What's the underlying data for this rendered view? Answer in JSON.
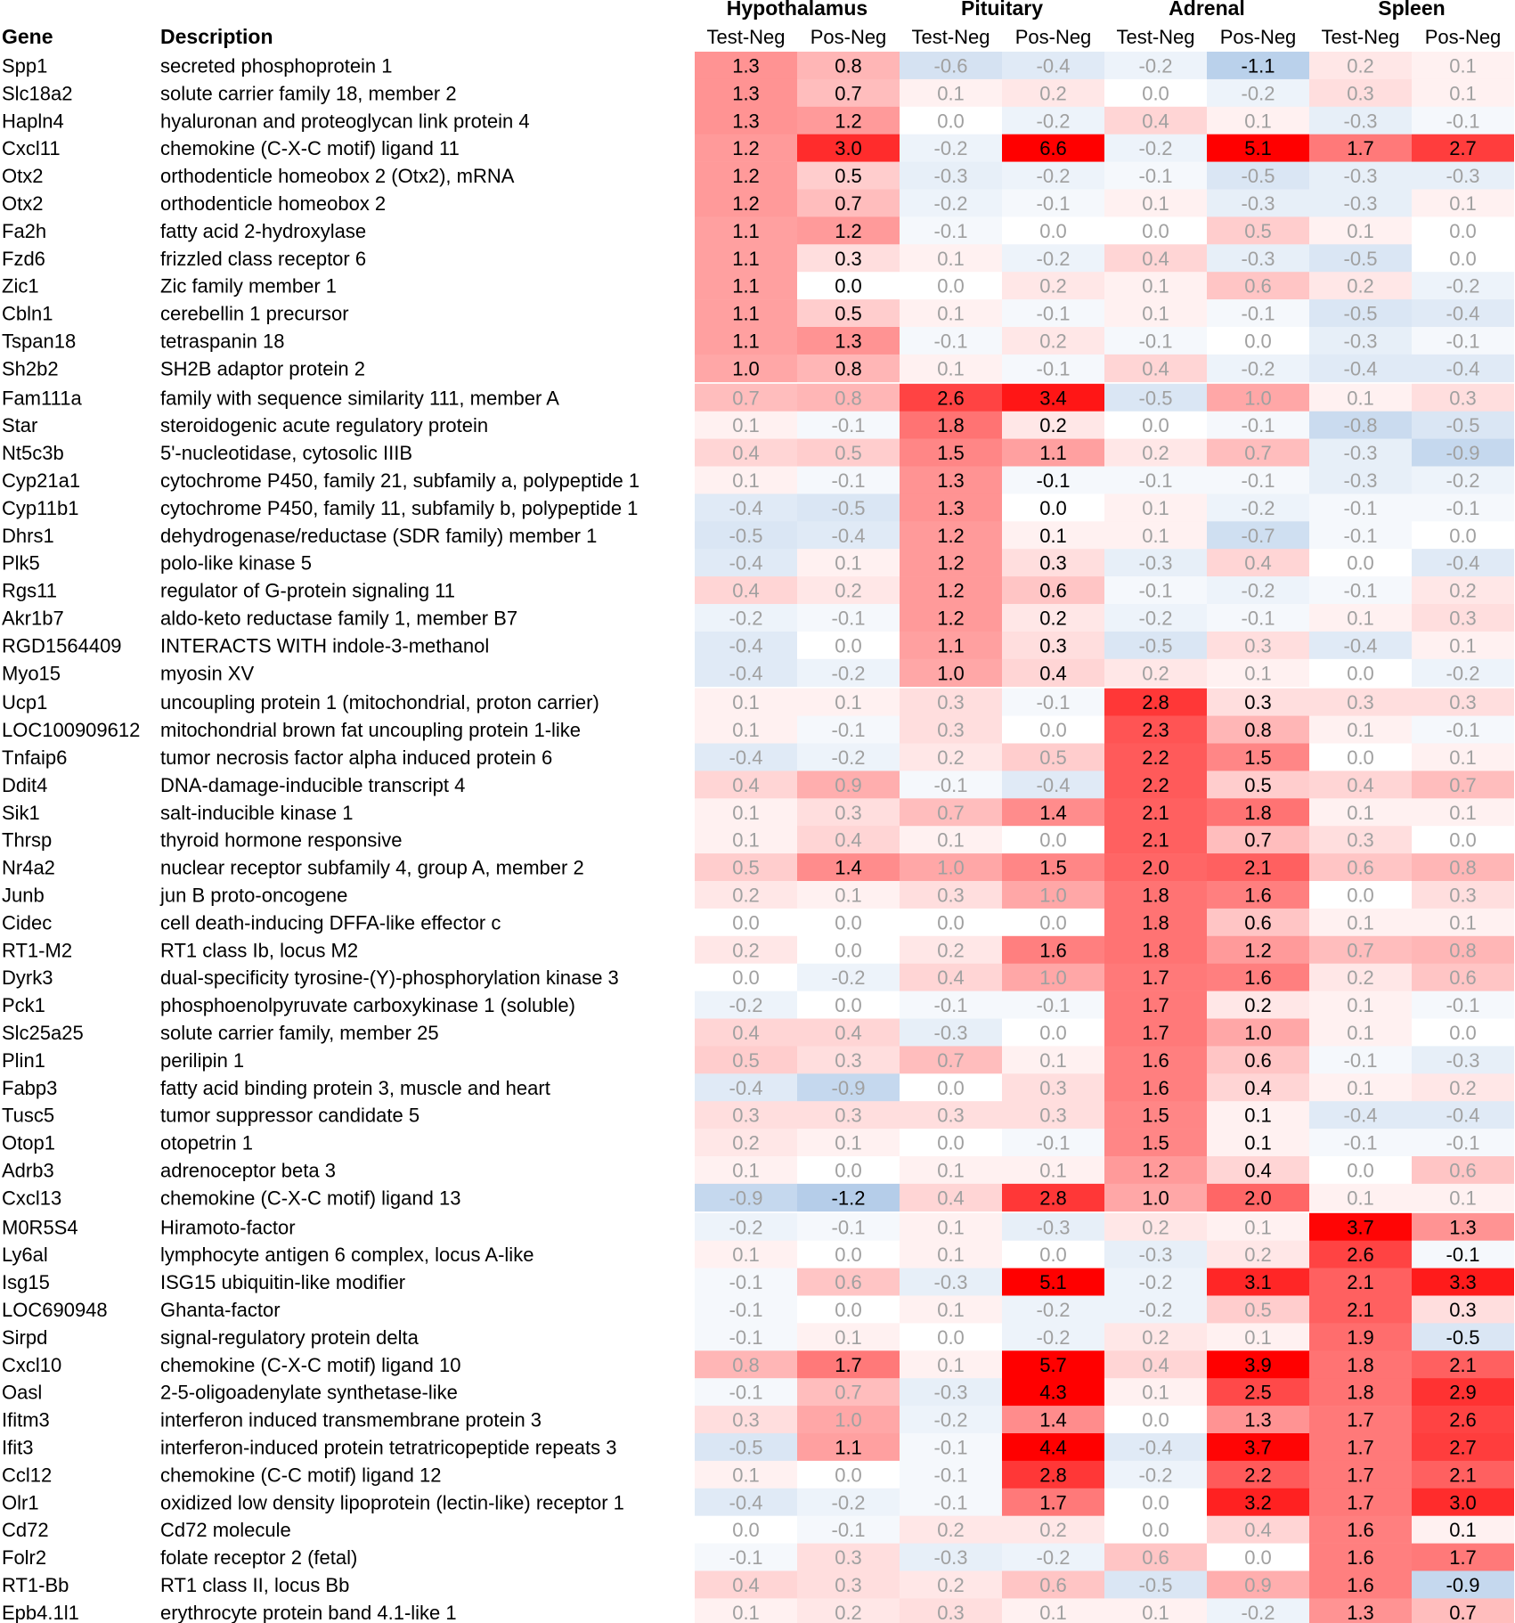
{
  "headers": {
    "gene": "Gene",
    "description": "Description",
    "groups": [
      "Hypothalamus",
      "Pituitary",
      "Adrenal",
      "Spleen"
    ],
    "subcolumns": [
      "Test-Neg",
      "Pos-Neg"
    ]
  },
  "chart_data": {
    "type": "heatmap",
    "title": "",
    "columns": [
      "Hypothalamus Test-Neg",
      "Hypothalamus Pos-Neg",
      "Pituitary Test-Neg",
      "Pituitary Pos-Neg",
      "Adrenal Test-Neg",
      "Adrenal Pos-Neg",
      "Spleen Test-Neg",
      "Spleen Pos-Neg"
    ],
    "color_scale": {
      "negative": "#4682c8",
      "zero": "#ffffff",
      "positive": "#ff0000",
      "max_abs": 3.8
    },
    "groups": [
      {
        "name": "Hypothalamus",
        "rows": [
          {
            "gene": "Spp1",
            "description": "secreted phosphoprotein 1",
            "values": [
              1.3,
              0.8,
              -0.6,
              -0.4,
              -0.2,
              -1.1,
              0.2,
              0.1
            ]
          },
          {
            "gene": "Slc18a2",
            "description": "solute carrier family 18, member 2",
            "values": [
              1.3,
              0.7,
              0.1,
              0.2,
              0.0,
              -0.2,
              0.3,
              0.1
            ]
          },
          {
            "gene": "Hapln4",
            "description": "hyaluronan and proteoglycan link protein 4",
            "values": [
              1.3,
              1.2,
              0.0,
              -0.2,
              0.4,
              0.1,
              -0.3,
              -0.1
            ]
          },
          {
            "gene": "Cxcl11",
            "description": "chemokine (C-X-C motif) ligand 11",
            "values": [
              1.2,
              3.0,
              -0.2,
              6.6,
              -0.2,
              5.1,
              1.7,
              2.7
            ]
          },
          {
            "gene": "Otx2",
            "description": "orthodenticle homeobox 2 (Otx2), mRNA",
            "values": [
              1.2,
              0.5,
              -0.3,
              -0.2,
              -0.1,
              -0.5,
              -0.3,
              -0.3
            ]
          },
          {
            "gene": "Otx2",
            "description": "orthodenticle homeobox 2",
            "values": [
              1.2,
              0.7,
              -0.2,
              -0.1,
              0.1,
              -0.3,
              -0.3,
              0.1
            ]
          },
          {
            "gene": "Fa2h",
            "description": "fatty acid 2-hydroxylase",
            "values": [
              1.1,
              1.2,
              -0.1,
              0.0,
              0.0,
              0.5,
              0.1,
              0.0
            ]
          },
          {
            "gene": "Fzd6",
            "description": "frizzled class receptor 6",
            "values": [
              1.1,
              0.3,
              0.1,
              -0.2,
              0.4,
              -0.3,
              -0.5,
              0.0
            ]
          },
          {
            "gene": "Zic1",
            "description": "Zic family member 1",
            "values": [
              1.1,
              0.0,
              0.0,
              0.2,
              0.1,
              0.6,
              0.2,
              -0.2
            ]
          },
          {
            "gene": "Cbln1",
            "description": "cerebellin 1 precursor",
            "values": [
              1.1,
              0.5,
              0.1,
              -0.1,
              0.1,
              -0.1,
              -0.5,
              -0.4
            ]
          },
          {
            "gene": "Tspan18",
            "description": "tetraspanin 18",
            "values": [
              1.1,
              1.3,
              -0.1,
              0.2,
              -0.1,
              0.0,
              -0.3,
              -0.1
            ]
          },
          {
            "gene": "Sh2b2",
            "description": "SH2B adaptor protein 2",
            "values": [
              1.0,
              0.8,
              0.1,
              -0.1,
              0.4,
              -0.2,
              -0.4,
              -0.4
            ]
          }
        ]
      },
      {
        "name": "Pituitary",
        "rows": [
          {
            "gene": "Fam111a",
            "description": "family with sequence similarity 111, member A",
            "values": [
              0.7,
              0.8,
              2.6,
              3.4,
              -0.5,
              1.0,
              0.1,
              0.3
            ]
          },
          {
            "gene": "Star",
            "description": "steroidogenic acute regulatory protein",
            "values": [
              0.1,
              -0.1,
              1.8,
              0.2,
              0.0,
              -0.1,
              -0.8,
              -0.5
            ]
          },
          {
            "gene": "Nt5c3b",
            "description": "5'-nucleotidase, cytosolic IIIB",
            "values": [
              0.4,
              0.5,
              1.5,
              1.1,
              0.2,
              0.7,
              -0.3,
              -0.9
            ]
          },
          {
            "gene": "Cyp21a1",
            "description": "cytochrome P450, family 21, subfamily a, polypeptide 1",
            "values": [
              0.1,
              -0.1,
              1.3,
              -0.1,
              -0.1,
              -0.1,
              -0.3,
              -0.2
            ]
          },
          {
            "gene": "Cyp11b1",
            "description": "cytochrome P450, family 11, subfamily b, polypeptide 1",
            "values": [
              -0.4,
              -0.5,
              1.3,
              0.0,
              0.1,
              -0.2,
              -0.1,
              -0.1
            ]
          },
          {
            "gene": "Dhrs1",
            "description": "dehydrogenase/reductase (SDR family) member 1",
            "values": [
              -0.5,
              -0.4,
              1.2,
              0.1,
              0.1,
              -0.7,
              -0.1,
              0.0
            ]
          },
          {
            "gene": "Plk5",
            "description": "polo-like kinase 5",
            "values": [
              -0.4,
              0.1,
              1.2,
              0.3,
              -0.3,
              0.4,
              0.0,
              -0.4
            ]
          },
          {
            "gene": "Rgs11",
            "description": "regulator of G-protein signaling 11",
            "values": [
              0.4,
              0.2,
              1.2,
              0.6,
              -0.1,
              -0.2,
              -0.1,
              0.2
            ]
          },
          {
            "gene": "Akr1b7",
            "description": "aldo-keto reductase family 1, member B7",
            "values": [
              -0.2,
              -0.1,
              1.2,
              0.2,
              -0.2,
              -0.1,
              0.1,
              0.3
            ]
          },
          {
            "gene": "RGD1564409",
            "description": "INTERACTS WITH indole-3-methanol",
            "values": [
              -0.4,
              0.0,
              1.1,
              0.3,
              -0.5,
              0.3,
              -0.4,
              0.1
            ]
          },
          {
            "gene": "Myo15",
            "description": "myosin XV",
            "values": [
              -0.4,
              -0.2,
              1.0,
              0.4,
              0.2,
              0.1,
              0.0,
              -0.2
            ]
          }
        ]
      },
      {
        "name": "Adrenal",
        "rows": [
          {
            "gene": "Ucp1",
            "description": "uncoupling protein 1 (mitochondrial, proton carrier)",
            "values": [
              0.1,
              0.1,
              0.3,
              -0.1,
              2.8,
              0.3,
              0.3,
              0.3
            ]
          },
          {
            "gene": "LOC100909612",
            "description": "mitochondrial brown fat uncoupling protein 1-like",
            "values": [
              0.1,
              -0.1,
              0.3,
              0.0,
              2.3,
              0.8,
              0.1,
              -0.1
            ]
          },
          {
            "gene": "Tnfaip6",
            "description": "tumor necrosis factor alpha induced protein 6",
            "values": [
              -0.4,
              -0.2,
              0.2,
              0.5,
              2.2,
              1.5,
              0.0,
              0.1
            ]
          },
          {
            "gene": "Ddit4",
            "description": "DNA-damage-inducible transcript 4",
            "values": [
              0.4,
              0.9,
              -0.1,
              -0.4,
              2.2,
              0.5,
              0.4,
              0.7
            ]
          },
          {
            "gene": "Sik1",
            "description": "salt-inducible kinase 1",
            "values": [
              0.1,
              0.3,
              0.7,
              1.4,
              2.1,
              1.8,
              0.1,
              0.1
            ]
          },
          {
            "gene": "Thrsp",
            "description": "thyroid hormone responsive",
            "values": [
              0.1,
              0.4,
              0.1,
              0.0,
              2.1,
              0.7,
              0.3,
              0.0
            ]
          },
          {
            "gene": "Nr4a2",
            "description": "nuclear receptor subfamily 4, group A, member 2",
            "values": [
              0.5,
              1.4,
              1.0,
              1.5,
              2.0,
              2.1,
              0.6,
              0.8
            ]
          },
          {
            "gene": "Junb",
            "description": "jun B proto-oncogene",
            "values": [
              0.2,
              0.1,
              0.3,
              1.0,
              1.8,
              1.6,
              0.0,
              0.3
            ]
          },
          {
            "gene": "Cidec",
            "description": "cell death-inducing DFFA-like effector c",
            "values": [
              0.0,
              0.0,
              0.0,
              0.0,
              1.8,
              0.6,
              0.1,
              0.1
            ]
          },
          {
            "gene": "RT1-M2",
            "description": "RT1 class Ib, locus M2",
            "values": [
              0.2,
              0.0,
              0.2,
              1.6,
              1.8,
              1.2,
              0.7,
              0.8
            ]
          },
          {
            "gene": "Dyrk3",
            "description": "dual-specificity tyrosine-(Y)-phosphorylation kinase 3",
            "values": [
              0.0,
              -0.2,
              0.4,
              1.0,
              1.7,
              1.6,
              0.2,
              0.6
            ]
          },
          {
            "gene": "Pck1",
            "description": "phosphoenolpyruvate carboxykinase 1 (soluble)",
            "values": [
              -0.2,
              0.0,
              -0.1,
              -0.1,
              1.7,
              0.2,
              0.1,
              -0.1
            ]
          },
          {
            "gene": "Slc25a25",
            "description": "solute carrier family, member 25",
            "values": [
              0.4,
              0.4,
              -0.3,
              0.0,
              1.7,
              1.0,
              0.1,
              0.0
            ]
          },
          {
            "gene": "Plin1",
            "description": "perilipin 1",
            "values": [
              0.5,
              0.3,
              0.7,
              0.1,
              1.6,
              0.6,
              -0.1,
              -0.3
            ]
          },
          {
            "gene": "Fabp3",
            "description": "fatty acid binding protein 3, muscle and heart",
            "values": [
              -0.4,
              -0.9,
              0.0,
              0.3,
              1.6,
              0.4,
              0.1,
              0.2
            ]
          },
          {
            "gene": "Tusc5",
            "description": "tumor suppressor candidate 5",
            "values": [
              0.3,
              0.3,
              0.3,
              0.3,
              1.5,
              0.1,
              -0.4,
              -0.4
            ]
          },
          {
            "gene": "Otop1",
            "description": "otopetrin 1",
            "values": [
              0.2,
              0.1,
              0.0,
              -0.1,
              1.5,
              0.1,
              -0.1,
              -0.1
            ]
          },
          {
            "gene": "Adrb3",
            "description": "adrenoceptor beta 3",
            "values": [
              0.1,
              0.0,
              0.1,
              0.1,
              1.2,
              0.4,
              0.0,
              0.6
            ]
          },
          {
            "gene": "Cxcl13",
            "description": "chemokine (C-X-C motif) ligand 13",
            "values": [
              -0.9,
              -1.2,
              0.4,
              2.8,
              1.0,
              2.0,
              0.1,
              0.1
            ]
          }
        ]
      },
      {
        "name": "Spleen",
        "rows": [
          {
            "gene": "M0R5S4",
            "description": "Hiramoto-factor",
            "values": [
              -0.2,
              -0.1,
              0.1,
              -0.3,
              0.2,
              0.1,
              3.7,
              1.3
            ]
          },
          {
            "gene": "Ly6al",
            "description": "lymphocyte antigen 6 complex, locus A-like",
            "values": [
              0.1,
              0.0,
              0.1,
              0.0,
              -0.3,
              0.2,
              2.6,
              -0.1
            ]
          },
          {
            "gene": "Isg15",
            "description": "ISG15 ubiquitin-like modifier",
            "values": [
              -0.1,
              0.6,
              -0.3,
              5.1,
              -0.2,
              3.1,
              2.1,
              3.3
            ]
          },
          {
            "gene": "LOC690948",
            "description": "Ghanta-factor",
            "values": [
              -0.1,
              0.0,
              0.1,
              -0.2,
              -0.2,
              0.5,
              2.1,
              0.3
            ]
          },
          {
            "gene": "Sirpd",
            "description": "signal-regulatory protein delta",
            "values": [
              -0.1,
              0.1,
              0.0,
              -0.2,
              0.2,
              0.1,
              1.9,
              -0.5
            ]
          },
          {
            "gene": "Cxcl10",
            "description": "chemokine (C-X-C motif) ligand 10",
            "values": [
              0.8,
              1.7,
              0.1,
              5.7,
              0.4,
              3.9,
              1.8,
              2.1
            ]
          },
          {
            "gene": "Oasl",
            "description": "2-5-oligoadenylate synthetase-like",
            "values": [
              -0.1,
              0.7,
              -0.3,
              4.3,
              0.1,
              2.5,
              1.8,
              2.9
            ]
          },
          {
            "gene": "Ifitm3",
            "description": "interferon induced transmembrane protein 3",
            "values": [
              0.3,
              1.0,
              -0.2,
              1.4,
              0.0,
              1.3,
              1.7,
              2.6
            ]
          },
          {
            "gene": "Ifit3",
            "description": "interferon-induced protein tetratricopeptide repeats 3",
            "values": [
              -0.5,
              1.1,
              -0.1,
              4.4,
              -0.4,
              3.7,
              1.7,
              2.7
            ]
          },
          {
            "gene": "Ccl12",
            "description": "chemokine (C-C motif) ligand 12",
            "values": [
              0.1,
              0.0,
              -0.1,
              2.8,
              -0.2,
              2.2,
              1.7,
              2.1
            ]
          },
          {
            "gene": "Olr1",
            "description": "oxidized low density lipoprotein (lectin-like) receptor 1",
            "values": [
              -0.4,
              -0.2,
              -0.1,
              1.7,
              0.0,
              3.2,
              1.7,
              3.0
            ]
          },
          {
            "gene": "Cd72",
            "description": "Cd72 molecule",
            "values": [
              0.0,
              -0.1,
              0.2,
              0.2,
              0.0,
              0.4,
              1.6,
              0.1
            ]
          },
          {
            "gene": "Folr2",
            "description": "folate receptor 2 (fetal)",
            "values": [
              -0.1,
              0.3,
              -0.3,
              -0.2,
              0.6,
              0.0,
              1.6,
              1.7
            ]
          },
          {
            "gene": "RT1-Bb",
            "description": "RT1 class II, locus Bb",
            "values": [
              0.4,
              0.3,
              0.2,
              0.6,
              -0.5,
              0.9,
              1.6,
              -0.9
            ]
          },
          {
            "gene": "Epb4.1l1",
            "description": "erythrocyte protein band 4.1-like 1",
            "values": [
              0.1,
              0.2,
              0.3,
              0.1,
              0.1,
              -0.2,
              1.3,
              0.7
            ]
          }
        ]
      }
    ]
  }
}
